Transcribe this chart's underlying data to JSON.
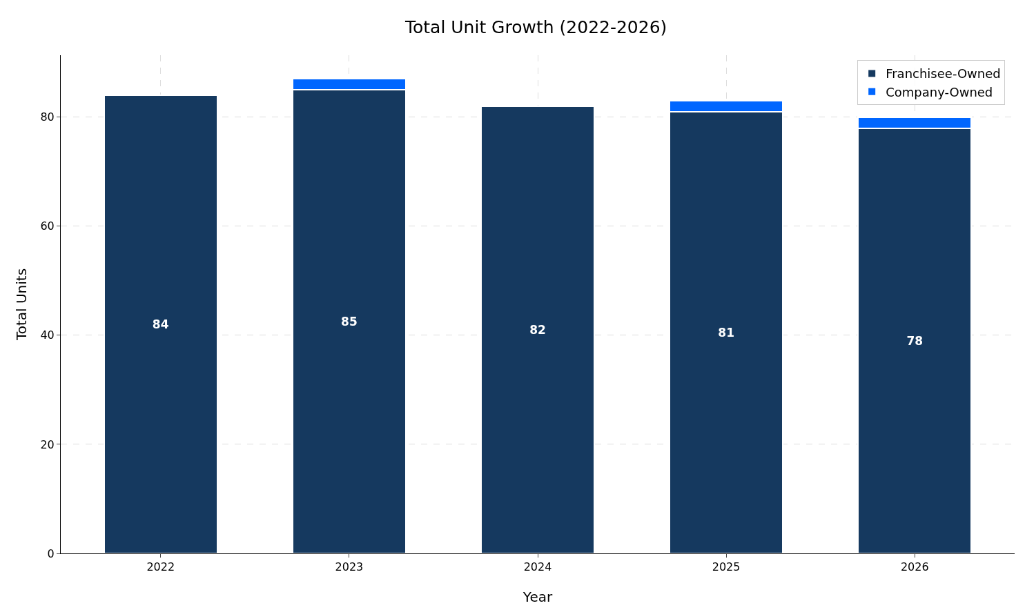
{
  "chart_data": {
    "type": "bar",
    "title": "Total Unit Growth (2022-2026)",
    "xlabel": "Year",
    "ylabel": "Total Units",
    "categories": [
      "2022",
      "2023",
      "2024",
      "2025",
      "2026"
    ],
    "stacked": true,
    "series": [
      {
        "name": "Franchisee-Owned",
        "color": "#15395f",
        "values": [
          84,
          85,
          82,
          81,
          78
        ],
        "value_labels": [
          "84",
          "85",
          "82",
          "81",
          "78"
        ]
      },
      {
        "name": "Company-Owned",
        "color": "#0066ff",
        "values": [
          null,
          2,
          null,
          2,
          2
        ]
      }
    ],
    "ylim": [
      0,
      91.35
    ],
    "yticks": [
      0,
      20,
      40,
      60,
      80
    ],
    "grid": true,
    "legend": "top right"
  }
}
